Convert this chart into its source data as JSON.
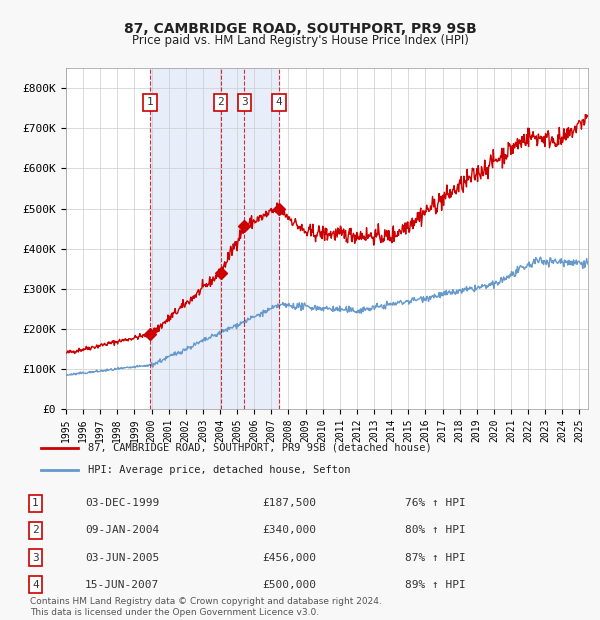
{
  "title1": "87, CAMBRIDGE ROAD, SOUTHPORT, PR9 9SB",
  "title2": "Price paid vs. HM Land Registry's House Price Index (HPI)",
  "red_label": "87, CAMBRIDGE ROAD, SOUTHPORT, PR9 9SB (detached house)",
  "blue_label": "HPI: Average price, detached house, Sefton",
  "transactions": [
    {
      "num": 1,
      "date": "03-DEC-1999",
      "price": 187500,
      "year": 1999.92,
      "pct": "76%"
    },
    {
      "num": 2,
      "date": "09-JAN-2004",
      "price": 340000,
      "year": 2004.03,
      "pct": "80%"
    },
    {
      "num": 3,
      "date": "03-JUN-2005",
      "price": 456000,
      "year": 2005.42,
      "pct": "87%"
    },
    {
      "num": 4,
      "date": "15-JUN-2007",
      "price": 500000,
      "year": 2007.45,
      "pct": "89%"
    }
  ],
  "footnote": "Contains HM Land Registry data © Crown copyright and database right 2024.\nThis data is licensed under the Open Government Licence v3.0.",
  "ylim": [
    0,
    850000
  ],
  "yticks": [
    0,
    100000,
    200000,
    300000,
    400000,
    500000,
    600000,
    700000,
    800000
  ],
  "ytick_labels": [
    "£0",
    "£100K",
    "£200K",
    "£300K",
    "£400K",
    "£500K",
    "£600K",
    "£700K",
    "£800K"
  ],
  "xmin": 1995.0,
  "xmax": 2025.5,
  "bg_color": "#f0f4ff",
  "plot_bg": "#ffffff",
  "grid_color": "#cccccc",
  "red_color": "#cc0000",
  "blue_color": "#6699cc",
  "shade1_start": 1999.92,
  "shade1_end": 2004.03,
  "shade2_start": 2004.03,
  "shade2_end": 2007.45
}
